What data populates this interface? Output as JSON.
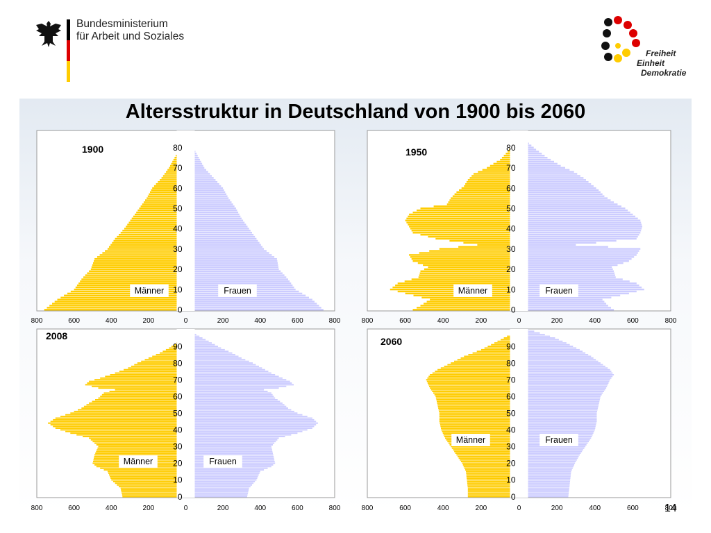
{
  "header": {
    "ministry_line1": "Bundesministerium",
    "ministry_line2": "für Arbeit und Soziales",
    "logo_words": [
      "Freiheit",
      "Einheit",
      "Demokratie"
    ],
    "colors": {
      "black": "#000000",
      "red": "#dd0000",
      "gold": "#ffcc00"
    }
  },
  "title": "Altersstruktur in Deutschland von 1900 bis 2060",
  "page_number": "14",
  "colors": {
    "men": "#ffcc00",
    "women": "#ccccff"
  },
  "chart_data": [
    {
      "type": "bar",
      "orientation": "horizontal-pyramid",
      "year": "1900",
      "left_label": "Männer",
      "right_label": "Frauen",
      "age_ticks": [
        "0",
        "10",
        "20",
        "30",
        "40",
        "50",
        "60",
        "70",
        "80"
      ],
      "x_ticks": [
        "800",
        "600",
        "400",
        "200",
        "0",
        "200",
        "400",
        "600",
        "800"
      ],
      "xlim": [
        -800,
        800
      ],
      "age_max": 88,
      "series": [
        {
          "name": "Männer",
          "profile": [
            [
              0,
              760
            ],
            [
              5,
              690
            ],
            [
              10,
              600
            ],
            [
              15,
              560
            ],
            [
              20,
              510
            ],
            [
              25,
              490
            ],
            [
              30,
              420
            ],
            [
              35,
              380
            ],
            [
              40,
              330
            ],
            [
              45,
              290
            ],
            [
              50,
              250
            ],
            [
              55,
              210
            ],
            [
              60,
              180
            ],
            [
              65,
              130
            ],
            [
              70,
              90
            ],
            [
              75,
              60
            ],
            [
              80,
              30
            ],
            [
              84,
              10
            ],
            [
              88,
              2
            ]
          ]
        },
        {
          "name": "Frauen",
          "profile": [
            [
              0,
              740
            ],
            [
              5,
              680
            ],
            [
              10,
              590
            ],
            [
              15,
              550
            ],
            [
              20,
              500
            ],
            [
              25,
              490
            ],
            [
              30,
              420
            ],
            [
              35,
              380
            ],
            [
              40,
              340
            ],
            [
              45,
              300
            ],
            [
              50,
              270
            ],
            [
              55,
              230
            ],
            [
              60,
              200
            ],
            [
              65,
              150
            ],
            [
              70,
              100
            ],
            [
              75,
              70
            ],
            [
              80,
              40
            ],
            [
              84,
              15
            ],
            [
              88,
              3
            ]
          ]
        }
      ]
    },
    {
      "type": "bar",
      "orientation": "horizontal-pyramid",
      "year": "1950",
      "left_label": "Männer",
      "right_label": "Frauen",
      "age_ticks": [
        "0",
        "10",
        "20",
        "30",
        "40",
        "50",
        "60",
        "70",
        "80"
      ],
      "x_ticks": [
        "800",
        "600",
        "400",
        "200",
        "0",
        "200",
        "400",
        "600",
        "800"
      ],
      "xlim": [
        -800,
        800
      ],
      "age_max": 88,
      "series": [
        {
          "name": "Männer",
          "profile": [
            [
              0,
              560
            ],
            [
              2,
              520
            ],
            [
              5,
              470
            ],
            [
              8,
              600
            ],
            [
              10,
              680
            ],
            [
              13,
              640
            ],
            [
              16,
              530
            ],
            [
              19,
              520
            ],
            [
              21,
              480
            ],
            [
              24,
              560
            ],
            [
              27,
              580
            ],
            [
              30,
              420
            ],
            [
              32,
              220
            ],
            [
              35,
              440
            ],
            [
              38,
              560
            ],
            [
              41,
              580
            ],
            [
              44,
              600
            ],
            [
              47,
              580
            ],
            [
              50,
              520
            ],
            [
              52,
              380
            ],
            [
              55,
              360
            ],
            [
              58,
              330
            ],
            [
              61,
              290
            ],
            [
              64,
              270
            ],
            [
              67,
              240
            ],
            [
              70,
              170
            ],
            [
              74,
              100
            ],
            [
              78,
              60
            ],
            [
              82,
              30
            ],
            [
              86,
              8
            ],
            [
              88,
              2
            ]
          ]
        },
        {
          "name": "Frauen",
          "profile": [
            [
              0,
              500
            ],
            [
              2,
              470
            ],
            [
              5,
              440
            ],
            [
              8,
              580
            ],
            [
              10,
              660
            ],
            [
              13,
              620
            ],
            [
              16,
              510
            ],
            [
              19,
              500
            ],
            [
              21,
              490
            ],
            [
              24,
              580
            ],
            [
              27,
              620
            ],
            [
              30,
              640
            ],
            [
              32,
              300
            ],
            [
              35,
              620
            ],
            [
              38,
              640
            ],
            [
              41,
              650
            ],
            [
              44,
              640
            ],
            [
              47,
              600
            ],
            [
              50,
              560
            ],
            [
              53,
              500
            ],
            [
              56,
              450
            ],
            [
              59,
              420
            ],
            [
              62,
              380
            ],
            [
              65,
              340
            ],
            [
              68,
              290
            ],
            [
              71,
              220
            ],
            [
              75,
              150
            ],
            [
              79,
              90
            ],
            [
              83,
              40
            ],
            [
              86,
              12
            ],
            [
              88,
              3
            ]
          ]
        }
      ]
    },
    {
      "type": "bar",
      "orientation": "horizontal-pyramid",
      "year": "2008",
      "left_label": "Männer",
      "right_label": "Frauen",
      "age_ticks": [
        "0",
        "10",
        "20",
        "30",
        "40",
        "50",
        "60",
        "70",
        "80",
        "90"
      ],
      "x_ticks": [
        "800",
        "600",
        "400",
        "200",
        "0",
        "200",
        "400",
        "600",
        "800"
      ],
      "xlim": [
        -800,
        800
      ],
      "age_max": 100,
      "series": [
        {
          "name": "Männer",
          "profile": [
            [
              0,
              340
            ],
            [
              5,
              350
            ],
            [
              10,
              400
            ],
            [
              15,
              420
            ],
            [
              18,
              480
            ],
            [
              20,
              500
            ],
            [
              25,
              490
            ],
            [
              30,
              470
            ],
            [
              35,
              520
            ],
            [
              38,
              620
            ],
            [
              41,
              700
            ],
            [
              44,
              740
            ],
            [
              47,
              700
            ],
            [
              50,
              620
            ],
            [
              53,
              560
            ],
            [
              56,
              520
            ],
            [
              59,
              470
            ],
            [
              62,
              440
            ],
            [
              64,
              380
            ],
            [
              65,
              470
            ],
            [
              67,
              540
            ],
            [
              69,
              520
            ],
            [
              71,
              460
            ],
            [
              74,
              380
            ],
            [
              77,
              310
            ],
            [
              80,
              260
            ],
            [
              83,
              200
            ],
            [
              86,
              140
            ],
            [
              89,
              90
            ],
            [
              92,
              50
            ],
            [
              95,
              25
            ],
            [
              98,
              8
            ],
            [
              100,
              2
            ]
          ]
        },
        {
          "name": "Frauen",
          "profile": [
            [
              0,
              330
            ],
            [
              5,
              340
            ],
            [
              10,
              380
            ],
            [
              15,
              400
            ],
            [
              18,
              460
            ],
            [
              20,
              480
            ],
            [
              25,
              470
            ],
            [
              30,
              460
            ],
            [
              35,
              500
            ],
            [
              38,
              600
            ],
            [
              41,
              680
            ],
            [
              44,
              710
            ],
            [
              47,
              680
            ],
            [
              50,
              600
            ],
            [
              53,
              550
            ],
            [
              56,
              520
            ],
            [
              59,
              480
            ],
            [
              62,
              460
            ],
            [
              64,
              420
            ],
            [
              65,
              500
            ],
            [
              67,
              580
            ],
            [
              69,
              560
            ],
            [
              71,
              520
            ],
            [
              74,
              460
            ],
            [
              77,
              410
            ],
            [
              80,
              360
            ],
            [
              83,
              300
            ],
            [
              86,
              250
            ],
            [
              89,
              190
            ],
            [
              92,
              140
            ],
            [
              95,
              90
            ],
            [
              98,
              40
            ],
            [
              100,
              10
            ]
          ]
        }
      ]
    },
    {
      "type": "bar",
      "orientation": "horizontal-pyramid",
      "year": "2060",
      "left_label": "Männer",
      "right_label": "Frauen",
      "age_ticks": [
        "0",
        "10",
        "20",
        "30",
        "40",
        "50",
        "60",
        "70",
        "80",
        "90"
      ],
      "x_ticks": [
        "800",
        "600",
        "400",
        "200",
        "0",
        "200",
        "400",
        "600",
        "800"
      ],
      "xlim": [
        -800,
        800
      ],
      "age_max": 100,
      "series": [
        {
          "name": "Männer",
          "profile": [
            [
              0,
              270
            ],
            [
              5,
              270
            ],
            [
              10,
              275
            ],
            [
              15,
              280
            ],
            [
              20,
              300
            ],
            [
              25,
              330
            ],
            [
              30,
              360
            ],
            [
              35,
              390
            ],
            [
              40,
              410
            ],
            [
              45,
              420
            ],
            [
              50,
              420
            ],
            [
              55,
              430
            ],
            [
              60,
              440
            ],
            [
              65,
              470
            ],
            [
              70,
              490
            ],
            [
              73,
              470
            ],
            [
              76,
              430
            ],
            [
              80,
              360
            ],
            [
              84,
              290
            ],
            [
              88,
              200
            ],
            [
              92,
              130
            ],
            [
              95,
              80
            ],
            [
              98,
              30
            ],
            [
              100,
              10
            ]
          ]
        },
        {
          "name": "Frauen",
          "profile": [
            [
              0,
              260
            ],
            [
              5,
              265
            ],
            [
              10,
              270
            ],
            [
              15,
              275
            ],
            [
              20,
              295
            ],
            [
              25,
              320
            ],
            [
              30,
              350
            ],
            [
              35,
              380
            ],
            [
              40,
              400
            ],
            [
              45,
              410
            ],
            [
              50,
              410
            ],
            [
              55,
              420
            ],
            [
              60,
              430
            ],
            [
              65,
              460
            ],
            [
              70,
              480
            ],
            [
              73,
              500
            ],
            [
              76,
              480
            ],
            [
              80,
              430
            ],
            [
              84,
              380
            ],
            [
              88,
              320
            ],
            [
              92,
              250
            ],
            [
              95,
              190
            ],
            [
              98,
              110
            ],
            [
              100,
              50
            ]
          ]
        }
      ]
    }
  ]
}
